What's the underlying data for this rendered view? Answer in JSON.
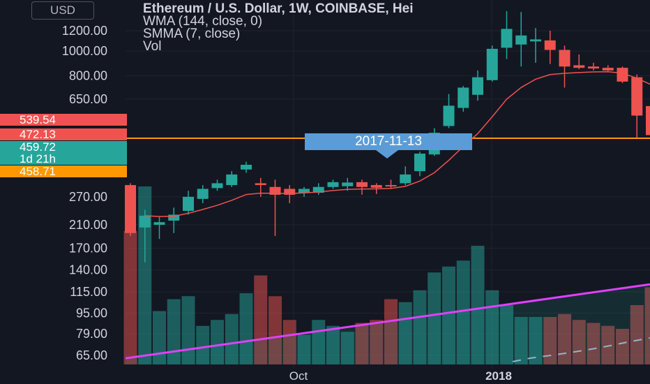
{
  "header": {
    "currency": "USD",
    "legend": [
      "Ethereum / U.S. Dollar, 1W, COINBASE, Hei",
      "WMA (144, close, 0)",
      "SMMA (7, close)",
      "Vol"
    ]
  },
  "price_tags": [
    {
      "label": "539.54",
      "color": "#ef5350"
    },
    {
      "label": "472.13",
      "color": "#ef5350"
    },
    {
      "label": "459.72",
      "color": "#26a69a"
    },
    {
      "label": "1d 21h",
      "color": "#26a69a"
    },
    {
      "label": "458.71",
      "color": "#ff9800"
    }
  ],
  "crosshair_date": "2017-11-13",
  "horizontal_line_price": 458.71,
  "colors": {
    "background": "#131722",
    "up": "#26a69a",
    "down": "#ef5350",
    "hline": "#ff9800",
    "smma": "#ef5350",
    "wma": "#e040fb",
    "tooltip": "#5b9cd6"
  },
  "chart_data": {
    "type": "candlestick",
    "title": "Ethereum / U.S. Dollar, 1W, COINBASE, Hei",
    "y_scale": "log",
    "y_ticks": [
      "1200.00",
      "1000.00",
      "800.00",
      "650.00",
      "270.00",
      "210.00",
      "170.00",
      "140.00",
      "115.00",
      "95.00",
      "79.00",
      "65.00"
    ],
    "x_ticks": [
      "Oct",
      "2018"
    ],
    "candles": [
      {
        "o": 300,
        "h": 305,
        "l": 190,
        "c": 195
      },
      {
        "o": 205,
        "h": 240,
        "l": 150,
        "c": 228
      },
      {
        "o": 210,
        "h": 225,
        "l": 185,
        "c": 215
      },
      {
        "o": 218,
        "h": 245,
        "l": 195,
        "c": 230
      },
      {
        "o": 238,
        "h": 285,
        "l": 230,
        "c": 270
      },
      {
        "o": 265,
        "h": 300,
        "l": 255,
        "c": 290
      },
      {
        "o": 292,
        "h": 315,
        "l": 285,
        "c": 305
      },
      {
        "o": 300,
        "h": 340,
        "l": 295,
        "c": 330
      },
      {
        "o": 345,
        "h": 370,
        "l": 335,
        "c": 360
      },
      {
        "o": 305,
        "h": 320,
        "l": 270,
        "c": 300
      },
      {
        "o": 295,
        "h": 315,
        "l": 190,
        "c": 275
      },
      {
        "o": 290,
        "h": 300,
        "l": 255,
        "c": 275
      },
      {
        "o": 280,
        "h": 295,
        "l": 270,
        "c": 290
      },
      {
        "o": 280,
        "h": 305,
        "l": 275,
        "c": 295
      },
      {
        "o": 295,
        "h": 315,
        "l": 290,
        "c": 308
      },
      {
        "o": 297,
        "h": 320,
        "l": 285,
        "c": 307
      },
      {
        "o": 308,
        "h": 315,
        "l": 275,
        "c": 295
      },
      {
        "o": 300,
        "h": 305,
        "l": 277,
        "c": 293
      },
      {
        "o": 300,
        "h": 315,
        "l": 292,
        "c": 297
      },
      {
        "o": 305,
        "h": 355,
        "l": 300,
        "c": 330
      },
      {
        "o": 340,
        "h": 405,
        "l": 325,
        "c": 398
      },
      {
        "o": 395,
        "h": 500,
        "l": 390,
        "c": 480
      },
      {
        "o": 510,
        "h": 680,
        "l": 500,
        "c": 612
      },
      {
        "o": 600,
        "h": 730,
        "l": 580,
        "c": 720
      },
      {
        "o": 675,
        "h": 840,
        "l": 640,
        "c": 790
      },
      {
        "o": 770,
        "h": 1050,
        "l": 760,
        "c": 1020
      },
      {
        "o": 1030,
        "h": 1430,
        "l": 930,
        "c": 1220
      },
      {
        "o": 1060,
        "h": 1420,
        "l": 870,
        "c": 1150
      },
      {
        "o": 1090,
        "h": 1230,
        "l": 900,
        "c": 1110
      },
      {
        "o": 1100,
        "h": 1200,
        "l": 890,
        "c": 1010
      },
      {
        "o": 1010,
        "h": 1050,
        "l": 720,
        "c": 870
      },
      {
        "o": 880,
        "h": 970,
        "l": 850,
        "c": 860
      },
      {
        "o": 870,
        "h": 900,
        "l": 840,
        "c": 855
      },
      {
        "o": 860,
        "h": 880,
        "l": 835,
        "c": 840
      },
      {
        "o": 860,
        "h": 870,
        "l": 750,
        "c": 760
      },
      {
        "o": 790,
        "h": 810,
        "l": 460,
        "c": 560
      },
      {
        "o": 610,
        "h": 650,
        "l": 460,
        "c": 470
      }
    ],
    "volume": [
      45,
      60,
      18,
      22,
      23,
      13,
      15,
      17,
      24,
      30,
      23,
      15,
      10,
      15,
      13,
      11,
      14,
      15,
      22,
      21,
      25,
      31,
      33,
      35,
      40,
      25,
      20,
      16,
      16,
      16,
      17,
      15,
      14,
      13,
      12,
      20,
      26
    ],
    "smma_from_index": 1,
    "wma_volume_line": {
      "from": 4,
      "to": 45
    },
    "volume_ma_dashed": true
  }
}
